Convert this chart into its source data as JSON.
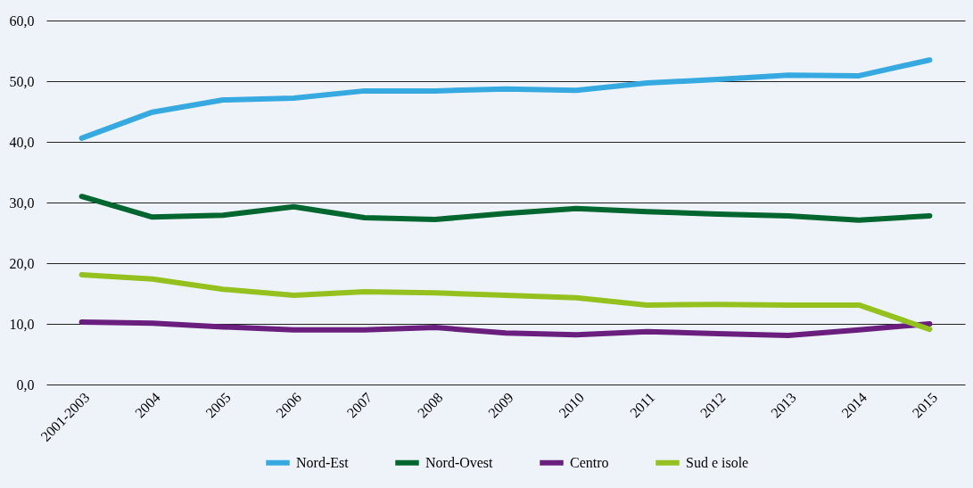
{
  "chart_data": {
    "type": "line",
    "categories": [
      "2001-2003",
      "2004",
      "2005",
      "2006",
      "2007",
      "2008",
      "2009",
      "2010",
      "2011",
      "2012",
      "2013",
      "2014",
      "2015"
    ],
    "series": [
      {
        "name": "Nord-Est",
        "color": "#36a9e1",
        "values": [
          40.6,
          44.9,
          46.9,
          47.2,
          48.4,
          48.4,
          48.7,
          48.5,
          49.7,
          50.3,
          51.0,
          50.9,
          53.5
        ]
      },
      {
        "name": "Nord-Ovest",
        "color": "#00662f",
        "values": [
          31.0,
          27.6,
          27.9,
          29.3,
          27.5,
          27.2,
          28.2,
          29.0,
          28.5,
          28.1,
          27.8,
          27.1,
          27.8
        ]
      },
      {
        "name": "Centro",
        "color": "#6a1f7f",
        "values": [
          10.3,
          10.1,
          9.5,
          9.0,
          9.0,
          9.4,
          8.5,
          8.2,
          8.7,
          8.4,
          8.1,
          9.0,
          10.0
        ]
      },
      {
        "name": "Sud e isole",
        "color": "#95c11f",
        "values": [
          18.1,
          17.4,
          15.7,
          14.7,
          15.3,
          15.1,
          14.7,
          14.3,
          13.1,
          13.2,
          13.1,
          13.1,
          9.1
        ]
      }
    ],
    "ylim": [
      0,
      60
    ],
    "yticks": [
      {
        "value": 0,
        "label": "0,0"
      },
      {
        "value": 10,
        "label": "10,0"
      },
      {
        "value": 20,
        "label": "20,0"
      },
      {
        "value": 30,
        "label": "30,0"
      },
      {
        "value": 40,
        "label": "40,0"
      },
      {
        "value": 50,
        "label": "50,0"
      },
      {
        "value": 60,
        "label": "60,0"
      }
    ],
    "grid": "y",
    "legend": "bottom",
    "marker": "none",
    "line_style": "solid"
  }
}
